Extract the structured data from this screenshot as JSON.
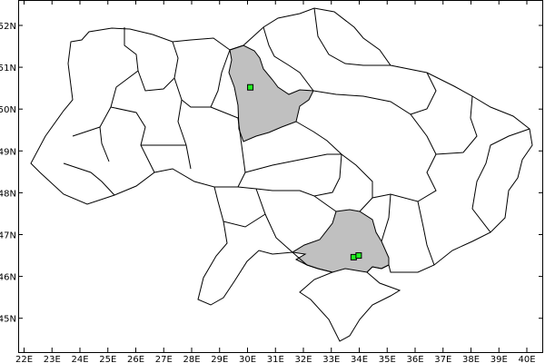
{
  "map": {
    "projection": "lon/lat",
    "lon_range": [
      21.8,
      40.6
    ],
    "lat_range": [
      44.2,
      52.6
    ],
    "colors": {
      "background": "#ffffff",
      "boundary": "#000000",
      "highlight_fill": "#c0c0c0",
      "marker_fill": "#22ee22",
      "marker_stroke": "#000000"
    },
    "lon_ticks": [
      {
        "value": 22,
        "label": "22E"
      },
      {
        "value": 23,
        "label": "23E"
      },
      {
        "value": 24,
        "label": "24E"
      },
      {
        "value": 25,
        "label": "25E"
      },
      {
        "value": 26,
        "label": "26E"
      },
      {
        "value": 27,
        "label": "27E"
      },
      {
        "value": 28,
        "label": "28E"
      },
      {
        "value": 29,
        "label": "29E"
      },
      {
        "value": 30,
        "label": "30E"
      },
      {
        "value": 31,
        "label": "31E"
      },
      {
        "value": 32,
        "label": "32E"
      },
      {
        "value": 33,
        "label": "33E"
      },
      {
        "value": 34,
        "label": "34E"
      },
      {
        "value": 35,
        "label": "35E"
      },
      {
        "value": 36,
        "label": "36E"
      },
      {
        "value": 37,
        "label": "37E"
      },
      {
        "value": 38,
        "label": "38E"
      },
      {
        "value": 39,
        "label": "39E"
      },
      {
        "value": 40,
        "label": "40E"
      }
    ],
    "lat_ticks": [
      {
        "value": 52,
        "label": "52N"
      },
      {
        "value": 51,
        "label": "51N"
      },
      {
        "value": 50,
        "label": "50N"
      },
      {
        "value": 49,
        "label": "49N"
      },
      {
        "value": 48,
        "label": "48N"
      },
      {
        "value": 47,
        "label": "47N"
      },
      {
        "value": 46,
        "label": "46N"
      },
      {
        "value": 45,
        "label": "45N"
      }
    ],
    "markers": [
      {
        "lon": 30.1,
        "lat": 50.52
      },
      {
        "lon": 33.8,
        "lat": 46.46
      },
      {
        "lon": 33.98,
        "lat": 46.5
      }
    ]
  }
}
